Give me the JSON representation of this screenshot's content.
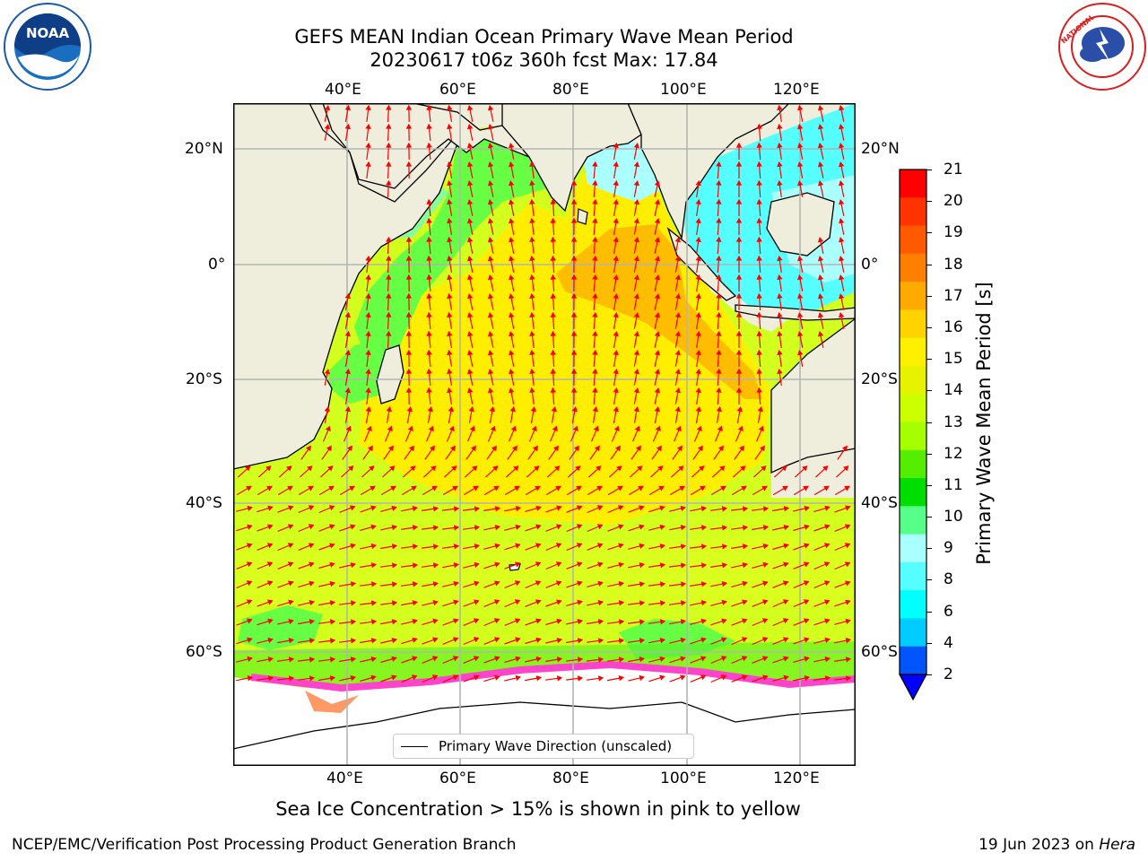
{
  "header": {
    "title_line1": "GEFS MEAN Indian Ocean Primary Wave Mean Period",
    "title_line2": "20230617 t06z 360h fcst   Max: 17.84"
  },
  "logos": {
    "noaa": {
      "text": "NOAA",
      "ring_text": "NATIONAL OCEANIC AND ATMOSPHERIC ADMINISTRATION · U.S. DEPARTMENT OF COMMERCE",
      "color": "#1a5aa8"
    },
    "nws": {
      "ring_text": "NATIONAL WEATHER SERVICE",
      "color": "#d81e1e"
    }
  },
  "map": {
    "lon_ticks": [
      "40°E",
      "60°E",
      "80°E",
      "100°E",
      "120°E"
    ],
    "lat_ticks": [
      "20°N",
      "0°",
      "20°S",
      "40°S",
      "60°S"
    ],
    "legend_label": "Primary Wave Direction (unscaled)",
    "land_color": "#efeedd",
    "arrow_color": "#ff0000"
  },
  "colorbar": {
    "label": "Primary Wave Mean Period [s]",
    "ticks": [
      "21",
      "20",
      "19",
      "18",
      "17",
      "16",
      "15",
      "14",
      "13",
      "12",
      "11",
      "10",
      "9",
      "8",
      "6",
      "4",
      "2"
    ],
    "colors": [
      "#ff0000",
      "#ff3300",
      "#ff5a00",
      "#ff8000",
      "#ffaa00",
      "#ffd200",
      "#fff000",
      "#e6f200",
      "#ccff00",
      "#a6ff00",
      "#55ee00",
      "#00dd00",
      "#55ff88",
      "#aaffff",
      "#55ffff",
      "#00ffff",
      "#00ccff",
      "#0055ff"
    ],
    "extend_color": "#0000ff"
  },
  "subtitle": "Sea Ice Concentration > 15% is shown in pink to yellow",
  "footer": {
    "left": "NCEP/EMC/Verification Post Processing Product Generation Branch",
    "right_date": "19 Jun 2023 on ",
    "right_machine": "Hera"
  }
}
